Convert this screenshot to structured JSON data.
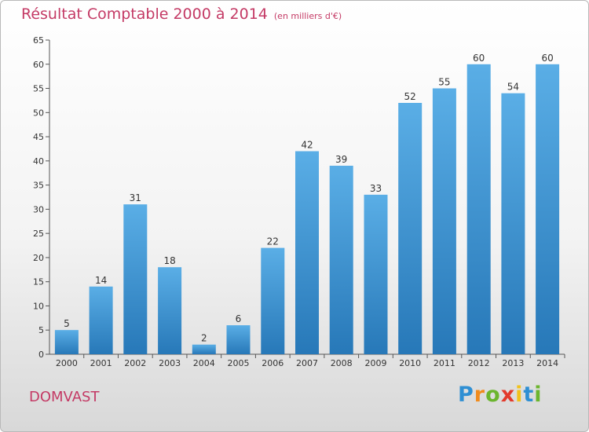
{
  "header": {
    "title": "Résultat Comptable 2000 à 2014",
    "subtitle": "(en milliers d'€)"
  },
  "footer": {
    "commune": "DOMVAST",
    "brand_letters": [
      "P",
      "r",
      "o",
      "x",
      "i",
      "t",
      "i"
    ]
  },
  "colors": {
    "title": "#c43a65",
    "bar_top": "#5aaee6",
    "bar_bottom": "#2778b8"
  },
  "chart_data": {
    "type": "bar",
    "categories": [
      "2000",
      "2001",
      "2002",
      "2003",
      "2004",
      "2005",
      "2006",
      "2007",
      "2008",
      "2009",
      "2010",
      "2011",
      "2012",
      "2013",
      "2014"
    ],
    "values": [
      5,
      14,
      31,
      18,
      2,
      6,
      22,
      42,
      39,
      33,
      52,
      55,
      60,
      54,
      60
    ],
    "title": "Résultat Comptable 2000 à 2014",
    "xlabel": "",
    "ylabel": "",
    "ylim": [
      0,
      65
    ],
    "yticks": [
      0,
      5,
      10,
      15,
      20,
      25,
      30,
      35,
      40,
      45,
      50,
      55,
      60,
      65
    ],
    "grid": false,
    "legend": "none"
  }
}
